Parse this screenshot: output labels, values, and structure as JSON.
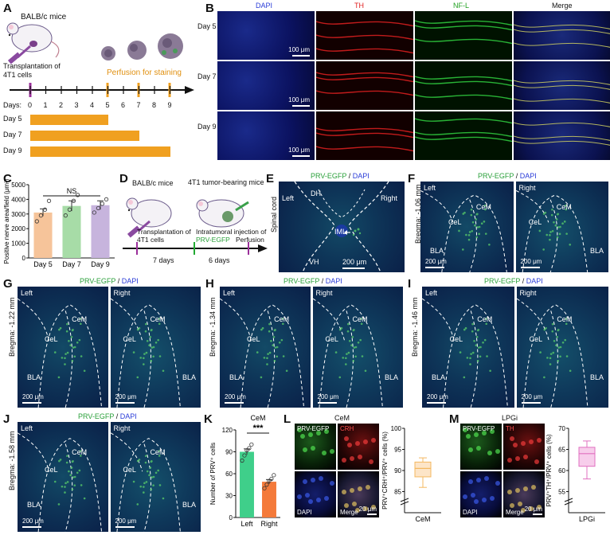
{
  "panels": {
    "A": {
      "label": "A",
      "mouse_label": "BALB/c mice",
      "transplant_label": "Transplantation of 4T1 cells",
      "perfusion_label": "Perfusion for staining",
      "days_label": "Days:",
      "days": [
        "0",
        "1",
        "2",
        "3",
        "4",
        "5",
        "6",
        "7",
        "8",
        "9"
      ],
      "bars": [
        {
          "label": "Day 5",
          "end_day": 5
        },
        {
          "label": "Day 7",
          "end_day": 7
        },
        {
          "label": "Day 9",
          "end_day": 9
        }
      ],
      "colors": {
        "bar": "#f0a020",
        "transplant_mark": "#9b2f9b",
        "perfusion_mark": "#f0a020"
      }
    },
    "B": {
      "label": "B",
      "columns": [
        "DAPI",
        "TH",
        "NF-L",
        "Merge"
      ],
      "column_colors": [
        "#2a3cd8",
        "#e02020",
        "#20a020",
        "#111111"
      ],
      "rows": [
        "Day 5",
        "Day 7",
        "Day 9"
      ],
      "scale": "100 μm"
    },
    "C": {
      "label": "C"
    },
    "D": {
      "label": "D",
      "mouse1": "BALB/c mice",
      "mouse2": "4T1 tumor-bearing mice",
      "step1": "Transplantation of 4T1 cells",
      "step2a": "Intratumoral injection of",
      "step2b": "PRV-EGFP",
      "step3": "Perfusion",
      "interval1": "7 days",
      "interval2": "6 days"
    },
    "E": {
      "label": "E",
      "title_green": "PRV-EGFP",
      "title_sep": " / ",
      "title_blue": "DAPI",
      "left": "Left",
      "right": "Right",
      "dh": "DH",
      "vh": "VH",
      "iml": "IML",
      "side": "Spinal cord",
      "scale": "200 μm"
    },
    "F": {
      "label": "F",
      "bregma": "Bregma: -1.06 mm"
    },
    "G": {
      "label": "G",
      "bregma": "Bregma: -1.22 mm"
    },
    "H": {
      "label": "H",
      "bregma": "Bregma: -1.34 mm"
    },
    "I": {
      "label": "I",
      "bregma": "Bregma: -1.46 mm"
    },
    "J": {
      "label": "J",
      "bregma": "Bregma: -1.58 mm"
    },
    "K": {
      "label": "K"
    },
    "L": {
      "label": "L",
      "title": "CeM",
      "tiles": [
        "PRV-EGFP",
        "CRH",
        "DAPI",
        "Merge"
      ],
      "scale": "20 μm"
    },
    "M": {
      "label": "M",
      "title": "LPGi",
      "tiles": [
        "PRV-EGFP",
        "TH",
        "DAPI",
        "Merge"
      ],
      "scale": "20 μm"
    },
    "amygdala": {
      "title_green": "PRV-EGFP",
      "title_sep": " / ",
      "title_blue": "DAPI",
      "left": "Left",
      "right": "Right",
      "cel": "CeL",
      "cem": "CeM",
      "bla": "BLA",
      "scale": "200 μm"
    }
  },
  "chart_data": [
    {
      "id": "C",
      "type": "bar",
      "categories": [
        "Day 5",
        "Day 7",
        "Day 9"
      ],
      "values": [
        3100,
        3550,
        3600
      ],
      "errors": [
        250,
        350,
        300
      ],
      "points": [
        [
          2500,
          2900,
          3300,
          3900
        ],
        [
          2900,
          3300,
          3900,
          4300
        ],
        [
          3100,
          3400,
          3700,
          4000
        ]
      ],
      "colors": [
        "#f6c49a",
        "#a7dca7",
        "#c7b4dd"
      ],
      "ylabel": "Positive nerve area/field (μm²)",
      "ylim": [
        0,
        5000
      ],
      "yticks": [
        "0",
        "1000",
        "2000",
        "3000",
        "4000",
        "5000"
      ],
      "annotation": "NS"
    },
    {
      "id": "K",
      "type": "bar",
      "title": "CeM",
      "categories": [
        "Left",
        "Right"
      ],
      "values": [
        90,
        49
      ],
      "errors": [
        4,
        3
      ],
      "points": [
        [
          78,
          85,
          92,
          95,
          100
        ],
        [
          40,
          45,
          50,
          53,
          58
        ]
      ],
      "colors": [
        "#3fcf8a",
        "#f47a3a"
      ],
      "ylabel": "Number of PRV⁺ cells",
      "ylim": [
        0,
        120
      ],
      "yticks": [
        "0",
        "30",
        "60",
        "90",
        "120"
      ],
      "annotation": "***"
    },
    {
      "id": "L",
      "type": "box",
      "category": "CeM",
      "ylabel": "PRV⁺CRH⁺/PRV⁺ cells (%)",
      "ylim": [
        80,
        100
      ],
      "yticks": [
        "80",
        "85",
        "90",
        "95",
        "100"
      ],
      "box": {
        "min": 86,
        "q1": 88.5,
        "median": 90.5,
        "q3": 92,
        "max": 93
      },
      "color": "#f4b860",
      "fill": "#fde5c8"
    },
    {
      "id": "M",
      "type": "box",
      "category": "LPGi",
      "ylabel": "PRV⁺TH⁺/PRV⁺ cells (%)",
      "ylim": [
        50,
        70
      ],
      "yticks": [
        "50",
        "55",
        "60",
        "65",
        "70"
      ],
      "box": {
        "min": 58,
        "q1": 61,
        "median": 64,
        "q3": 65.5,
        "max": 67
      },
      "color": "#e070c0",
      "fill": "#f7cdeb"
    }
  ]
}
